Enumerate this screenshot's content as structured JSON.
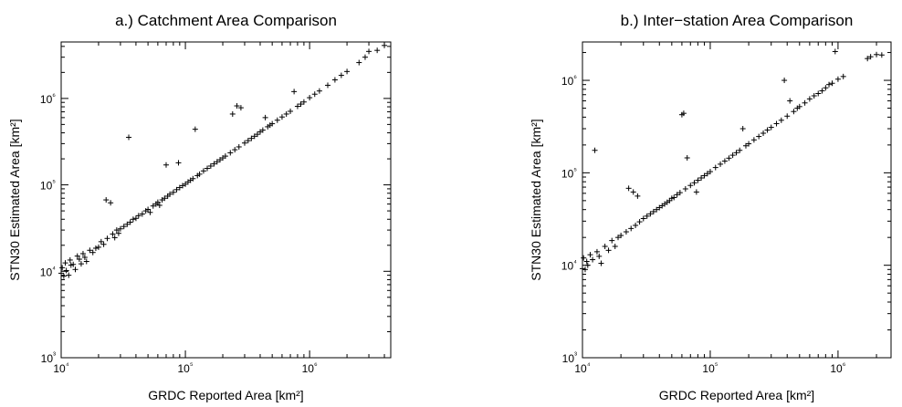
{
  "chart_data": [
    {
      "type": "scatter",
      "title": "a.) Catchment Area Comparison",
      "xlabel": "GRDC Reported Area [km²]",
      "ylabel": "STN30 Estimated Area [km²]",
      "xscale": "log",
      "yscale": "log",
      "xlim": [
        10000,
        4500000
      ],
      "ylim": [
        1000,
        4500000
      ],
      "xticks": [
        "10⁴",
        "10⁵",
        "10⁶"
      ],
      "yticks": [
        "10³",
        "10⁴",
        "10⁵",
        "10⁶"
      ],
      "marker": "+",
      "color": "#000000",
      "grid": false,
      "points": [
        [
          10000,
          9500
        ],
        [
          10200,
          11000
        ],
        [
          10500,
          8800
        ],
        [
          10800,
          12500
        ],
        [
          11000,
          10200
        ],
        [
          11500,
          9000
        ],
        [
          11800,
          13500
        ],
        [
          12000,
          11800
        ],
        [
          12500,
          12000
        ],
        [
          13000,
          10500
        ],
        [
          13500,
          15000
        ],
        [
          14000,
          13800
        ],
        [
          14500,
          12200
        ],
        [
          15000,
          16000
        ],
        [
          15500,
          14500
        ],
        [
          16000,
          13000
        ],
        [
          17000,
          17500
        ],
        [
          18000,
          16500
        ],
        [
          19000,
          18500
        ],
        [
          20000,
          19000
        ],
        [
          21000,
          22000
        ],
        [
          22000,
          20500
        ],
        [
          23000,
          67000
        ],
        [
          23500,
          24000
        ],
        [
          25000,
          62000
        ],
        [
          26000,
          27000
        ],
        [
          27000,
          24500
        ],
        [
          28000,
          30000
        ],
        [
          29000,
          27500
        ],
        [
          30000,
          31000
        ],
        [
          32000,
          33000
        ],
        [
          34000,
          35000
        ],
        [
          35000,
          355000
        ],
        [
          36000,
          37000
        ],
        [
          38000,
          40000
        ],
        [
          40000,
          41000
        ],
        [
          42000,
          44000
        ],
        [
          45000,
          46000
        ],
        [
          48000,
          50000
        ],
        [
          50000,
          52000
        ],
        [
          52000,
          48000
        ],
        [
          55000,
          57000
        ],
        [
          58000,
          60000
        ],
        [
          60000,
          63000
        ],
        [
          62000,
          58000
        ],
        [
          65000,
          67000
        ],
        [
          68000,
          70000
        ],
        [
          70000,
          170000
        ],
        [
          72000,
          74000
        ],
        [
          75000,
          78000
        ],
        [
          80000,
          82000
        ],
        [
          85000,
          88000
        ],
        [
          88000,
          180000
        ],
        [
          90000,
          93000
        ],
        [
          95000,
          98000
        ],
        [
          100000,
          102000
        ],
        [
          105000,
          108000
        ],
        [
          110000,
          113000
        ],
        [
          115000,
          118000
        ],
        [
          120000,
          440000
        ],
        [
          125000,
          128000
        ],
        [
          130000,
          133000
        ],
        [
          140000,
          145000
        ],
        [
          150000,
          155000
        ],
        [
          160000,
          165000
        ],
        [
          170000,
          175000
        ],
        [
          180000,
          185000
        ],
        [
          190000,
          195000
        ],
        [
          200000,
          205000
        ],
        [
          210000,
          215000
        ],
        [
          230000,
          235000
        ],
        [
          240000,
          660000
        ],
        [
          250000,
          255000
        ],
        [
          260000,
          820000
        ],
        [
          270000,
          275000
        ],
        [
          280000,
          780000
        ],
        [
          300000,
          305000
        ],
        [
          320000,
          325000
        ],
        [
          340000,
          345000
        ],
        [
          360000,
          365000
        ],
        [
          380000,
          385000
        ],
        [
          400000,
          410000
        ],
        [
          420000,
          430000
        ],
        [
          440000,
          600000
        ],
        [
          460000,
          470000
        ],
        [
          480000,
          490000
        ],
        [
          500000,
          510000
        ],
        [
          550000,
          560000
        ],
        [
          600000,
          610000
        ],
        [
          650000,
          660000
        ],
        [
          700000,
          710000
        ],
        [
          750000,
          1200000
        ],
        [
          800000,
          810000
        ],
        [
          850000,
          860000
        ],
        [
          900000,
          910000
        ],
        [
          1000000,
          1020000
        ],
        [
          1100000,
          1120000
        ],
        [
          1200000,
          1220000
        ],
        [
          1400000,
          1420000
        ],
        [
          1600000,
          1640000
        ],
        [
          1800000,
          1850000
        ],
        [
          2000000,
          2050000
        ],
        [
          2500000,
          2600000
        ],
        [
          2800000,
          3000000
        ],
        [
          3000000,
          3500000
        ],
        [
          3500000,
          3600000
        ],
        [
          4000000,
          4100000
        ]
      ]
    },
    {
      "type": "scatter",
      "title": "b.) Inter−station Area Comparison",
      "xlabel": "GRDC Reported Area [km²]",
      "ylabel": "STN30 Estimated Area [km²]",
      "xscale": "log",
      "yscale": "log",
      "xlim": [
        10000,
        2600000
      ],
      "ylim": [
        1000,
        2600000
      ],
      "xticks": [
        "10⁴",
        "10⁵",
        "10⁶"
      ],
      "yticks": [
        "10³",
        "10⁴",
        "10⁵",
        "10⁶"
      ],
      "marker": "+",
      "color": "#000000",
      "grid": false,
      "points": [
        [
          10000,
          9200
        ],
        [
          10200,
          12000
        ],
        [
          10500,
          9000
        ],
        [
          10800,
          11000
        ],
        [
          11000,
          10000
        ],
        [
          11500,
          13000
        ],
        [
          12000,
          11500
        ],
        [
          12500,
          175000
        ],
        [
          13000,
          14000
        ],
        [
          13500,
          12500
        ],
        [
          14000,
          10500
        ],
        [
          15000,
          16000
        ],
        [
          16000,
          14500
        ],
        [
          17000,
          18500
        ],
        [
          18000,
          16000
        ],
        [
          19000,
          20000
        ],
        [
          20000,
          21000
        ],
        [
          22000,
          23000
        ],
        [
          23000,
          68000
        ],
        [
          24000,
          25000
        ],
        [
          25000,
          62000
        ],
        [
          26000,
          27000
        ],
        [
          27000,
          56000
        ],
        [
          28000,
          29500
        ],
        [
          30000,
          32000
        ],
        [
          32000,
          34000
        ],
        [
          34000,
          36000
        ],
        [
          36000,
          38000
        ],
        [
          38000,
          40000
        ],
        [
          40000,
          42000
        ],
        [
          42000,
          44000
        ],
        [
          44000,
          46000
        ],
        [
          46000,
          48000
        ],
        [
          48000,
          50000
        ],
        [
          50000,
          53000
        ],
        [
          52000,
          54000
        ],
        [
          55000,
          58000
        ],
        [
          58000,
          61000
        ],
        [
          60000,
          425000
        ],
        [
          62000,
          440000
        ],
        [
          64000,
          67000
        ],
        [
          66000,
          145000
        ],
        [
          70000,
          73000
        ],
        [
          75000,
          78000
        ],
        [
          78000,
          62000
        ],
        [
          80000,
          83000
        ],
        [
          85000,
          88000
        ],
        [
          90000,
          93000
        ],
        [
          95000,
          98000
        ],
        [
          100000,
          103000
        ],
        [
          110000,
          114000
        ],
        [
          120000,
          124000
        ],
        [
          130000,
          134000
        ],
        [
          140000,
          144000
        ],
        [
          150000,
          155000
        ],
        [
          160000,
          165000
        ],
        [
          170000,
          175000
        ],
        [
          180000,
          300000
        ],
        [
          190000,
          196000
        ],
        [
          200000,
          206000
        ],
        [
          220000,
          227000
        ],
        [
          240000,
          247000
        ],
        [
          260000,
          268000
        ],
        [
          280000,
          290000
        ],
        [
          300000,
          310000
        ],
        [
          330000,
          340000
        ],
        [
          360000,
          370000
        ],
        [
          380000,
          1000000
        ],
        [
          400000,
          410000
        ],
        [
          420000,
          600000
        ],
        [
          450000,
          460000
        ],
        [
          480000,
          500000
        ],
        [
          500000,
          520000
        ],
        [
          550000,
          570000
        ],
        [
          600000,
          630000
        ],
        [
          650000,
          680000
        ],
        [
          700000,
          720000
        ],
        [
          750000,
          770000
        ],
        [
          800000,
          830000
        ],
        [
          850000,
          900000
        ],
        [
          900000,
          930000
        ],
        [
          950000,
          2050000
        ],
        [
          1000000,
          1030000
        ],
        [
          1100000,
          1100000
        ],
        [
          1700000,
          1720000
        ],
        [
          1800000,
          1800000
        ],
        [
          2000000,
          1900000
        ],
        [
          2200000,
          1880000
        ]
      ]
    }
  ]
}
